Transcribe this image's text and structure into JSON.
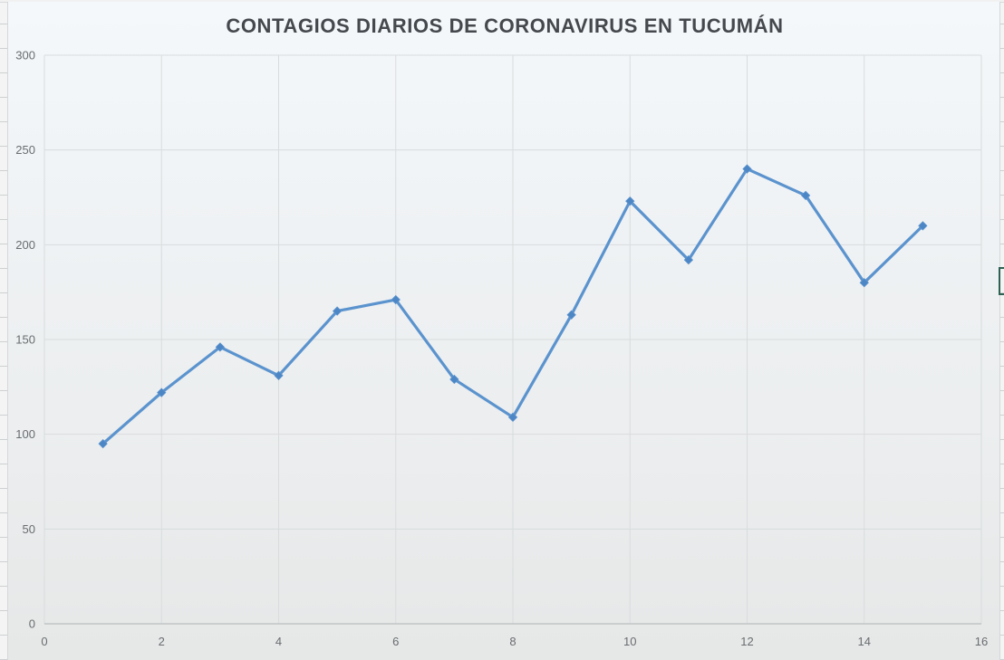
{
  "chart_data": {
    "type": "line",
    "title": "CONTAGIOS DIARIOS DE CORONAVIRUS EN TUCUMÁN",
    "x": [
      1,
      2,
      3,
      4,
      5,
      6,
      7,
      8,
      9,
      10,
      11,
      12,
      13,
      14,
      15
    ],
    "values": [
      95,
      122,
      146,
      131,
      165,
      171,
      129,
      109,
      163,
      223,
      192,
      240,
      226,
      180,
      210
    ],
    "xlabel": "",
    "ylabel": "",
    "xlim": [
      0,
      16
    ],
    "ylim": [
      0,
      300
    ],
    "x_ticks": [
      0,
      2,
      4,
      6,
      8,
      10,
      12,
      14,
      16
    ],
    "y_ticks": [
      0,
      50,
      100,
      150,
      200,
      250,
      300
    ],
    "grid": "on",
    "legend": "none",
    "marker": "diamond",
    "series_name": "Contagios diarios"
  },
  "colors": {
    "series_line": "#5b93ce",
    "series_marker": "#4d86c5",
    "gridline": "#d9dcdd",
    "axis_line": "#c2c5c6",
    "tick_label": "#696d6f",
    "title_text": "#45494e",
    "selection_border": "#2d6152"
  }
}
